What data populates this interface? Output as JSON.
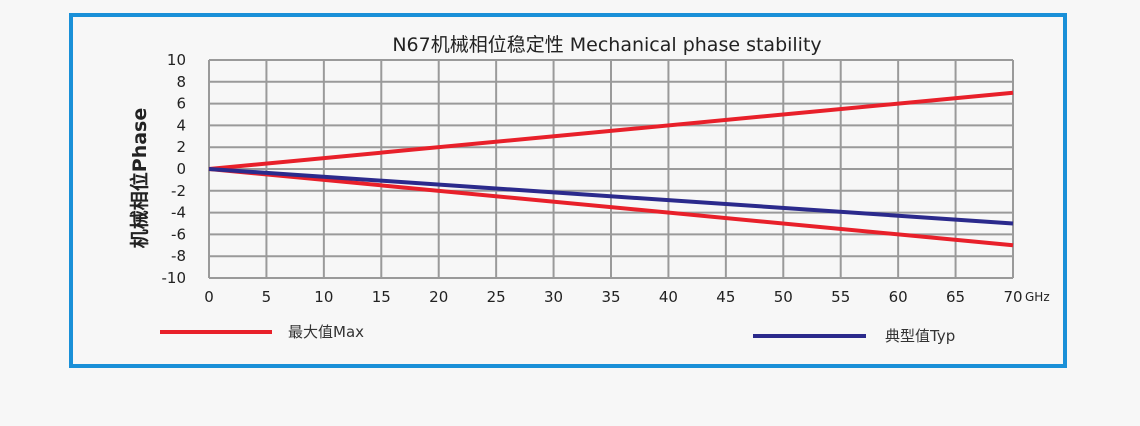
{
  "chart_data": {
    "type": "line",
    "title": "N67机械相位稳定性 Mechanical phase stability",
    "ylabel": "机械相位Phase",
    "xunit": "GHz",
    "xlim": [
      0,
      70
    ],
    "ylim": [
      -10,
      10
    ],
    "xticks": [
      0,
      5,
      10,
      15,
      20,
      25,
      30,
      35,
      40,
      45,
      50,
      55,
      60,
      65,
      70
    ],
    "yticks": [
      10,
      8,
      6,
      4,
      2,
      0,
      -2,
      -4,
      -6,
      -8,
      -10
    ],
    "grid": true,
    "legend_position": "bottom",
    "series": [
      {
        "name": "最大值Max",
        "color": "#e8202a",
        "x": [
          0,
          70
        ],
        "y": [
          0,
          7
        ]
      },
      {
        "name": "最大值Max",
        "color": "#e8202a",
        "x": [
          0,
          70
        ],
        "y": [
          0,
          -7
        ]
      },
      {
        "name": "典型值Typ",
        "color": "#2b2a8c",
        "x": [
          0,
          70
        ],
        "y": [
          0,
          -5
        ]
      }
    ],
    "legend": [
      {
        "label": "最大值Max",
        "color": "#e8202a"
      },
      {
        "label": "典型值Typ",
        "color": "#2b2a8c"
      }
    ]
  },
  "frame_color": "#1a90d8"
}
